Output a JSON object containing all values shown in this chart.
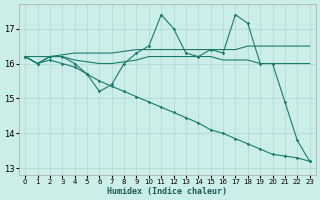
{
  "xlabel": "Humidex (Indice chaleur)",
  "xlim": [
    -0.5,
    23.5
  ],
  "ylim": [
    12.8,
    17.7
  ],
  "yticks": [
    13,
    14,
    15,
    16,
    17
  ],
  "xticks": [
    0,
    1,
    2,
    3,
    4,
    5,
    6,
    7,
    8,
    9,
    10,
    11,
    12,
    13,
    14,
    15,
    16,
    17,
    18,
    19,
    20,
    21,
    22,
    23
  ],
  "bg_color": "#cceee8",
  "line_color": "#1a7a6e",
  "grid_color": "#b8ddd8",
  "series": [
    {
      "x": [
        0,
        1,
        2,
        3,
        4,
        5,
        6,
        7,
        8,
        9,
        10,
        11,
        12,
        13,
        14,
        15,
        16,
        17,
        18,
        19,
        20,
        21,
        22,
        23
      ],
      "y": [
        16.2,
        16.0,
        16.2,
        16.2,
        16.0,
        15.7,
        15.2,
        15.4,
        16.0,
        16.3,
        16.5,
        17.4,
        17.0,
        16.3,
        16.2,
        16.4,
        16.3,
        17.4,
        17.15,
        16.0,
        16.0,
        14.9,
        13.8,
        13.2
      ],
      "marker": true
    },
    {
      "x": [
        0,
        1,
        2,
        3,
        4,
        5,
        6,
        7,
        8,
        9,
        10,
        11,
        12,
        13,
        14,
        15,
        16,
        17,
        18,
        19,
        20,
        21,
        22,
        23
      ],
      "y": [
        16.2,
        16.0,
        16.1,
        16.0,
        15.9,
        15.7,
        15.5,
        15.35,
        15.2,
        15.05,
        14.9,
        14.75,
        14.6,
        14.45,
        14.3,
        14.1,
        14.0,
        13.85,
        13.7,
        13.55,
        13.4,
        13.35,
        13.3,
        13.2
      ],
      "marker": true
    },
    {
      "x": [
        0,
        1,
        2,
        3,
        4,
        5,
        6,
        7,
        8,
        9,
        10,
        11,
        12,
        13,
        14,
        15,
        16,
        17,
        18,
        19,
        20,
        21,
        22,
        23
      ],
      "y": [
        16.2,
        16.2,
        16.2,
        16.25,
        16.3,
        16.3,
        16.3,
        16.3,
        16.35,
        16.4,
        16.4,
        16.4,
        16.4,
        16.4,
        16.4,
        16.4,
        16.4,
        16.4,
        16.5,
        16.5,
        16.5,
        16.5,
        16.5,
        16.5
      ],
      "marker": false
    },
    {
      "x": [
        0,
        1,
        2,
        3,
        4,
        5,
        6,
        7,
        8,
        9,
        10,
        11,
        12,
        13,
        14,
        15,
        16,
        17,
        18,
        19,
        20,
        21,
        22,
        23
      ],
      "y": [
        16.2,
        16.0,
        16.2,
        16.2,
        16.1,
        16.05,
        16.0,
        16.0,
        16.05,
        16.1,
        16.2,
        16.2,
        16.2,
        16.2,
        16.2,
        16.2,
        16.1,
        16.1,
        16.1,
        16.0,
        16.0,
        16.0,
        16.0,
        16.0
      ],
      "marker": false
    }
  ]
}
